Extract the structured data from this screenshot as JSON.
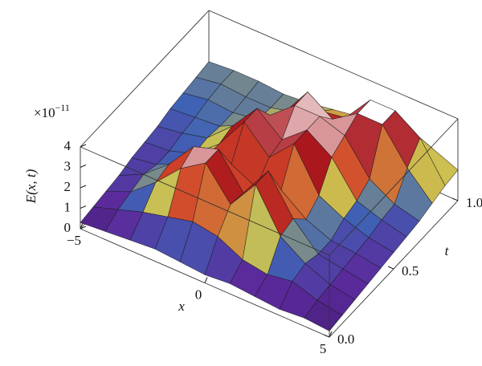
{
  "chart_data": {
    "type": "surface",
    "z_multiplier": "×10",
    "z_exponent": "−11",
    "z_label": "E(x, t)",
    "x_label": "x",
    "y_label": "t",
    "x": [
      -5,
      -4,
      -3,
      -2,
      -1,
      0,
      1,
      2,
      3,
      4,
      5
    ],
    "y": [
      0,
      0.1,
      0.2,
      0.3,
      0.4,
      0.5,
      0.6,
      0.7,
      0.8,
      0.9,
      1
    ],
    "z": [
      [
        0.3,
        0.4,
        0.5,
        0.6,
        0.5,
        0.4,
        0.5,
        0.4,
        0.3,
        0.4,
        0.3
      ],
      [
        0.4,
        0.8,
        1.2,
        1.5,
        1.8,
        1.6,
        1.0,
        0.8,
        1.0,
        0.6,
        0.4
      ],
      [
        0.5,
        1.0,
        2.0,
        3.2,
        4.0,
        2.5,
        4.0,
        2.0,
        1.2,
        0.7,
        0.5
      ],
      [
        0.6,
        1.2,
        2.2,
        3.6,
        4.0,
        2.4,
        4.0,
        2.2,
        1.0,
        0.8,
        0.6
      ],
      [
        0.8,
        1.0,
        1.6,
        2.5,
        2.6,
        2.0,
        2.4,
        1.5,
        1.0,
        0.9,
        0.7
      ],
      [
        0.9,
        1.0,
        1.4,
        2.4,
        4.0,
        2.8,
        4.0,
        2.0,
        1.4,
        1.0,
        0.8
      ],
      [
        1.0,
        1.2,
        1.5,
        2.6,
        4.0,
        3.0,
        4.0,
        3.2,
        1.6,
        1.2,
        0.9
      ],
      [
        1.2,
        1.3,
        1.4,
        2.0,
        3.0,
        4.0,
        4.0,
        3.6,
        2.0,
        1.3,
        1.0
      ],
      [
        1.3,
        1.5,
        1.4,
        1.6,
        2.4,
        4.0,
        3.2,
        4.0,
        4.0,
        2.4,
        1.2
      ],
      [
        1.4,
        1.6,
        1.5,
        1.5,
        1.8,
        2.4,
        2.6,
        4.0,
        4.0,
        3.2,
        1.4
      ],
      [
        1.5,
        1.6,
        1.6,
        1.5,
        1.6,
        1.8,
        2.0,
        2.6,
        2.4,
        2.0,
        1.5
      ]
    ],
    "xlim": [
      -5,
      5
    ],
    "ylim": [
      0,
      1
    ],
    "zlim": [
      0,
      4
    ],
    "xticks": [
      -5,
      0,
      5
    ],
    "yticks": [
      {
        "value": 0,
        "label": "0.0"
      },
      {
        "value": 0.5,
        "label": "0.5"
      },
      {
        "value": 1,
        "label": "1.0"
      }
    ],
    "zticks": [
      0,
      1,
      2,
      3,
      4
    ],
    "colormap": [
      "#3b1766",
      "#5b2a9c",
      "#3f63b4",
      "#cdc451",
      "#d2452a",
      "#a8151c",
      "#ffffff"
    ]
  }
}
